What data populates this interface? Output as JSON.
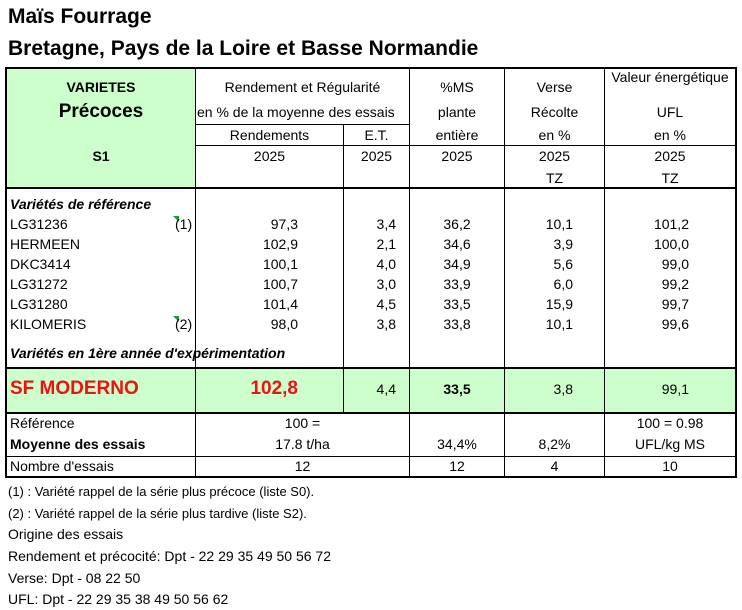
{
  "title_line1": "Maïs Fourrage",
  "title_line2": "Bretagne, Pays de la Loire et Basse Normandie",
  "colors": {
    "header_fill": "#ccffcc",
    "highlight_fill": "#ccffcc",
    "highlight_text": "#ee1111",
    "note_marker": "#1e9a3a"
  },
  "header": {
    "varietes": "VARIETES",
    "precoces": "Précoces",
    "s1": "S1",
    "rendement_group": "Rendement et Régularité",
    "rendement_sub": "en % de la moyenne des essais",
    "rendements": "Rendements",
    "et": "E.T.",
    "rend_year": "2025",
    "et_year": "2025",
    "ms_title": "%MS",
    "ms_sub1": "plante",
    "ms_sub2": "entière",
    "ms_year": "2025",
    "verse_title": "Verse",
    "verse_sub1": "Récolte",
    "verse_sub2": "en %",
    "verse_year": "2025",
    "verse_tz": "TZ",
    "ufl_title": "Valeur énergétique",
    "ufl_sub1": "UFL",
    "ufl_sub2": "en %",
    "ufl_year": "2025",
    "ufl_tz": "TZ"
  },
  "section_reference": "Variétés de référence",
  "reference_rows": [
    {
      "name": "LG31236",
      "note": "(1)",
      "rendement": "97,3",
      "et": "3,4",
      "ms": "36,2",
      "verse": "10,1",
      "ufl": "101,2"
    },
    {
      "name": "HERMEEN",
      "note": "",
      "rendement": "102,9",
      "et": "2,1",
      "ms": "34,6",
      "verse": "3,9",
      "ufl": "100,0"
    },
    {
      "name": "DKC3414",
      "note": "",
      "rendement": "100,1",
      "et": "4,0",
      "ms": "34,9",
      "verse": "5,6",
      "ufl": "99,0"
    },
    {
      "name": "LG31272",
      "note": "",
      "rendement": "100,7",
      "et": "3,0",
      "ms": "33,9",
      "verse": "6,0",
      "ufl": "99,2"
    },
    {
      "name": "LG31280",
      "note": "",
      "rendement": "101,4",
      "et": "4,5",
      "ms": "33,5",
      "verse": "15,9",
      "ufl": "99,7"
    },
    {
      "name": "KILOMERIS",
      "note": "(2)",
      "rendement": "98,0",
      "et": "3,8",
      "ms": "33,8",
      "verse": "10,1",
      "ufl": "99,6"
    }
  ],
  "section_new": "Variétés en 1ère année d'expérimentation",
  "highlight_row": {
    "name": "SF MODERNO",
    "rendement": "102,8",
    "et": "4,4",
    "ms": "33,5",
    "verse": "3,8",
    "ufl": "99,1"
  },
  "footer_rows": {
    "reference_label": "Référence",
    "reference_rend": "100 =",
    "reference_ufl": "100 = 0.98",
    "moyenne_label": "Moyenne des essais",
    "moyenne_rend": "17.8 t/ha",
    "moyenne_ms": "34,4%",
    "moyenne_verse": "8,2%",
    "moyenne_ufl": "UFL/kg MS",
    "nombre_label": "Nombre d'essais",
    "nombre_rend": "12",
    "nombre_ms": "12",
    "nombre_verse": "4",
    "nombre_ufl": "10"
  },
  "notes": [
    "(1) : Variété rappel de la série plus précoce (liste S0).",
    "(2) : Variété rappel de la série plus tardive (liste S2).",
    "Origine des essais",
    "Rendement et précocité: Dpt - 22 29 35 49 50 56 72",
    "Verse: Dpt - 08 22 50",
    "UFL: Dpt - 22 29 35 38 49 50 56 62"
  ]
}
